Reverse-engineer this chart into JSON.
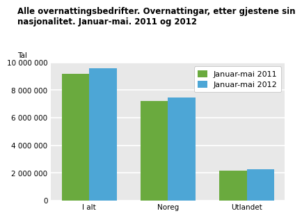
{
  "title": "Alle overnattingsbedrifter. Overnattingar, etter gjestene sin\nnasjonalitet. Januar-mai. 2011 og 2012",
  "ylabel": "Tal",
  "categories": [
    "I alt",
    "Noreg",
    "Utlandet"
  ],
  "series": [
    {
      "label": "Januar-mai 2011",
      "values": [
        9200000,
        7200000,
        2150000
      ],
      "color": "#6aaa3e"
    },
    {
      "label": "Januar-mai 2012",
      "values": [
        9600000,
        7450000,
        2300000
      ],
      "color": "#4da6d6"
    }
  ],
  "ylim": [
    0,
    10000000
  ],
  "yticks": [
    0,
    2000000,
    4000000,
    6000000,
    8000000,
    10000000
  ],
  "bar_width": 0.35,
  "bg_color": "#ffffff",
  "plot_bg_color": "#e8e8e8",
  "grid_color": "#ffffff",
  "title_fontsize": 8.5,
  "legend_fontsize": 8,
  "tick_fontsize": 7.5,
  "ylabel_fontsize": 7.5
}
